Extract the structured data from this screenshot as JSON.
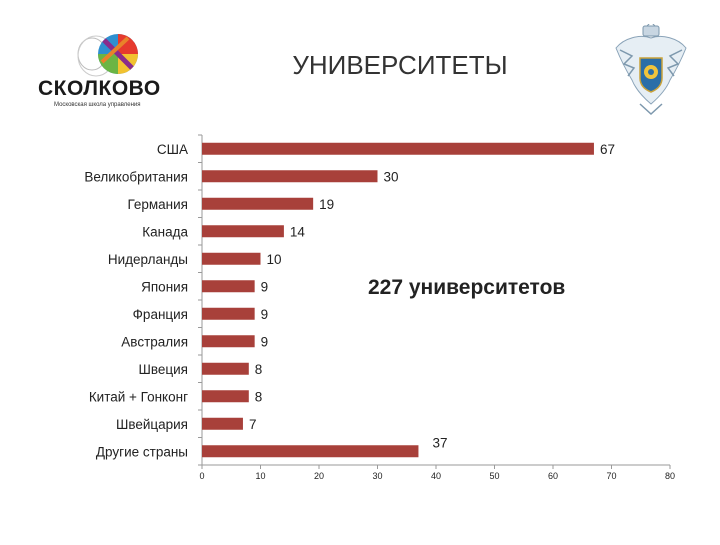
{
  "header": {
    "title": "УНИВЕРСИТЕТЫ",
    "logo_text": "СКОЛКОВО",
    "logo_subtitle": "Московская школа управления"
  },
  "colors": {
    "bar": "#A8403A",
    "axis": "#9a9a9a",
    "text": "#222222"
  },
  "chart_data": {
    "type": "bar",
    "orientation": "horizontal",
    "title": "УНИВЕРСИТЕТЫ",
    "categories": [
      "США",
      "Великобритания",
      "Германия",
      "Канада",
      "Нидерланды",
      "Япония",
      "Франция",
      "Австралия",
      "Швеция",
      "Китай + Гонконг",
      "Швейцария",
      "Другие страны"
    ],
    "values": [
      67,
      30,
      19,
      14,
      10,
      9,
      9,
      9,
      8,
      8,
      7,
      37
    ],
    "xlim": [
      0,
      80
    ],
    "xticks": [
      0,
      10,
      20,
      30,
      40,
      50,
      60,
      70,
      80
    ],
    "grid": false,
    "legend": "none",
    "annotation": "227 университетов"
  }
}
